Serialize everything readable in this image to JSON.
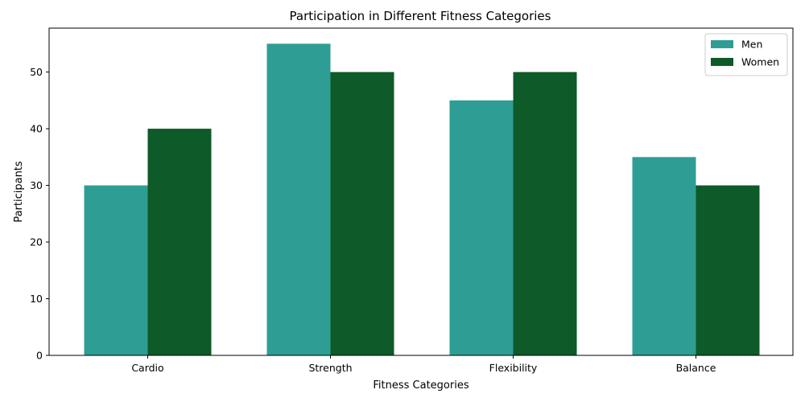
{
  "chart_data": {
    "type": "bar",
    "title": "Participation in Different Fitness Categories",
    "xlabel": "Fitness Categories",
    "ylabel": "Participants",
    "categories": [
      "Cardio",
      "Strength",
      "Flexibility",
      "Balance"
    ],
    "series": [
      {
        "name": "Men",
        "values": [
          30,
          55,
          45,
          35
        ],
        "color": "#2e9e94"
      },
      {
        "name": "Women",
        "values": [
          40,
          50,
          50,
          30
        ],
        "color": "#0e5a28"
      }
    ],
    "ylim": [
      0,
      57.75
    ],
    "yticks": [
      0,
      10,
      20,
      30,
      40,
      50
    ],
    "grid": false,
    "legend": "top-right"
  }
}
